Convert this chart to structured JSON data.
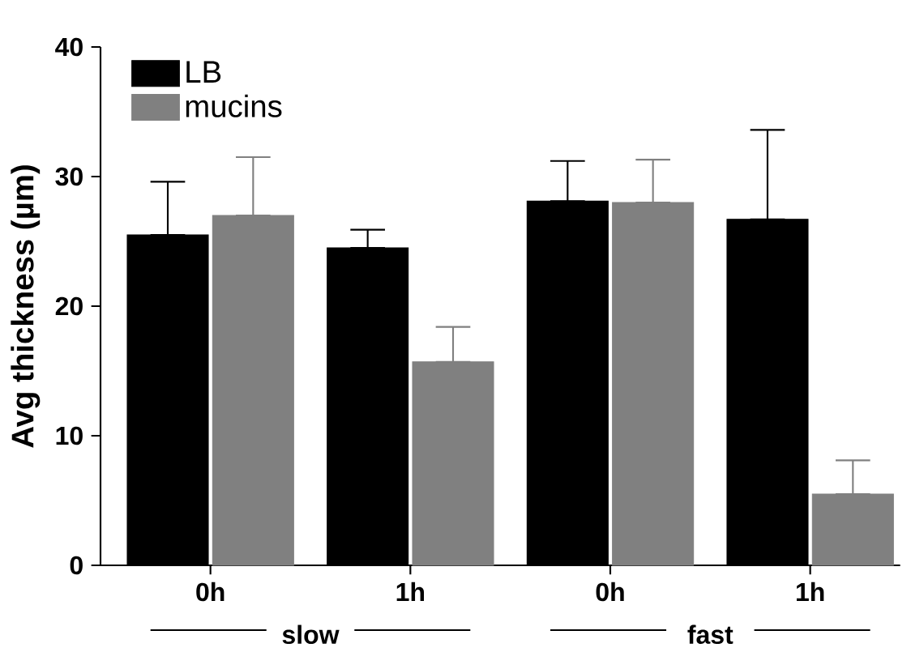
{
  "chart_data": {
    "type": "bar",
    "ylabel": "Avg thickness (µm)",
    "categories": [
      "0h",
      "1h",
      "0h",
      "1h"
    ],
    "series": [
      {
        "name": "LB",
        "color": "#000000",
        "values": [
          25.5,
          24.5,
          28.1,
          26.7
        ],
        "errors": [
          [
            25.5,
            29.6
          ],
          [
            24.5,
            25.9
          ],
          [
            28.1,
            31.2
          ],
          [
            26.7,
            33.6
          ]
        ]
      },
      {
        "name": "mucins",
        "color": "#808080",
        "values": [
          27,
          15.7,
          28,
          5.5
        ],
        "errors": [
          [
            27,
            31.5
          ],
          [
            15.7,
            18.4
          ],
          [
            28,
            31.3
          ],
          [
            5.5,
            8.1
          ]
        ]
      }
    ],
    "ylim": [
      0,
      40
    ],
    "yticks": [
      0,
      10,
      20,
      30,
      40
    ],
    "legend": "top left",
    "grid": false,
    "annotations": [
      "slow",
      "fast"
    ]
  }
}
